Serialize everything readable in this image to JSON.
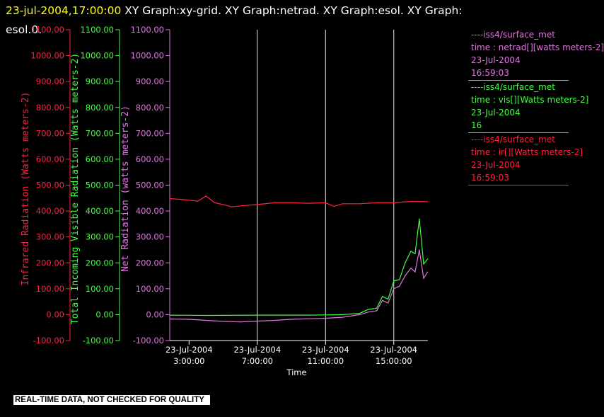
{
  "header": {
    "timestamp": "23-jul-2004,17:00:00",
    "graphs_line": " XY Graph:xy-grid.  XY Graph:netrad.  XY Graph:esol.  XY Graph:",
    "graphs_wrap": "esol.0."
  },
  "notice": "REAL-TIME DATA, NOT CHECKED FOR QUALITY",
  "colors": {
    "ir": "#ff2040",
    "vis": "#40ff40",
    "net": "#dd77dd",
    "axis": "#ffffff",
    "grid": "#ffffff"
  },
  "legend": [
    {
      "color": "#dd77dd",
      "lines": [
        "----iss4/surface_met",
        "time : netrad[][watts meters-2]",
        "23-Jul-2004",
        "16:59:03"
      ]
    },
    {
      "color": "#40ff40",
      "lines": [
        "----iss4/surface_met",
        "time : vis[][Watts meters-2]",
        "23-Jul-2004",
        "16"
      ]
    },
    {
      "color": "#ff2040",
      "lines": [
        "----iss4/surface_met",
        "time : ir[][Watts meters-2]",
        "23-Jul-2004",
        "16:59:03"
      ]
    }
  ],
  "chart_data": {
    "type": "line",
    "xlabel": "Time",
    "xlim": [
      "2004-07-23 01:52",
      "2004-07-23 17:00"
    ],
    "x_ticks": [
      {
        "date": "23-Jul-2004",
        "time": "3:00:00",
        "value": "2004-07-23 03:00"
      },
      {
        "date": "23-Jul-2004",
        "time": "7:00:00",
        "value": "2004-07-23 07:00"
      },
      {
        "date": "23-Jul-2004",
        "time": "11:00:00",
        "value": "2004-07-23 11:00"
      },
      {
        "date": "23-Jul-2004",
        "time": "15:00:00",
        "value": "2004-07-23 15:00"
      }
    ],
    "vertical_gridlines_at": [
      "2004-07-23 07:00",
      "2004-07-23 11:00",
      "2004-07-23 15:00"
    ],
    "y_axes": [
      {
        "id": "ir",
        "label": "Infrared Radiation (Watts meters-2)",
        "ylim": [
          -100,
          1100
        ],
        "ticks": [
          "-100.00",
          "0.00",
          "100.00",
          "200.00",
          "300.00",
          "400.00",
          "500.00",
          "600.00",
          "700.00",
          "800.00",
          "900.00",
          "1000.00",
          "1100.00"
        ]
      },
      {
        "id": "vis",
        "label": "Total Incoming Visible Radiation (Watts meters-2)",
        "ylim": [
          -100,
          1100
        ],
        "ticks": [
          "-100.00",
          "0.00",
          "100.00",
          "200.00",
          "300.00",
          "400.00",
          "500.00",
          "600.00",
          "700.00",
          "800.00",
          "900.00",
          "1000.00",
          "1100.00"
        ]
      },
      {
        "id": "net",
        "label": "Net Radiation (watts meters-2)",
        "ylim": [
          -100,
          1100
        ],
        "ticks": [
          "-100.00",
          "0.00",
          "100.00",
          "200.00",
          "300.00",
          "400.00",
          "500.00",
          "600.00",
          "700.00",
          "800.00",
          "900.00",
          "1000.00",
          "1100.00"
        ]
      }
    ],
    "series": [
      {
        "axis": "ir",
        "x": [
          "2004-07-23 01:52",
          "2004-07-23 02:30",
          "2004-07-23 03:00",
          "2004-07-23 03:30",
          "2004-07-23 04:00",
          "2004-07-23 04:30",
          "2004-07-23 05:00",
          "2004-07-23 05:30",
          "2004-07-23 06:00",
          "2004-07-23 07:00",
          "2004-07-23 08:00",
          "2004-07-23 09:00",
          "2004-07-23 10:00",
          "2004-07-23 11:00",
          "2004-07-23 11:30",
          "2004-07-23 12:00",
          "2004-07-23 13:00",
          "2004-07-23 14:00",
          "2004-07-23 15:00",
          "2004-07-23 16:00",
          "2004-07-23 16:59"
        ],
        "y": [
          448,
          445,
          442,
          438,
          458,
          432,
          425,
          416,
          420,
          425,
          432,
          432,
          430,
          432,
          418,
          428,
          428,
          432,
          432,
          437,
          436
        ]
      },
      {
        "axis": "vis",
        "x": [
          "2004-07-23 01:52",
          "2004-07-23 04:00",
          "2004-07-23 07:00",
          "2004-07-23 10:00",
          "2004-07-23 11:00",
          "2004-07-23 12:00",
          "2004-07-23 13:00",
          "2004-07-23 13:30",
          "2004-07-23 14:00",
          "2004-07-23 14:20",
          "2004-07-23 14:40",
          "2004-07-23 15:00",
          "2004-07-23 15:20",
          "2004-07-23 15:40",
          "2004-07-23 16:00",
          "2004-07-23 16:15",
          "2004-07-23 16:30",
          "2004-07-23 16:45",
          "2004-07-23 16:59"
        ],
        "y": [
          -2,
          -3,
          -2,
          -2,
          -1,
          0,
          5,
          20,
          25,
          70,
          60,
          130,
          135,
          200,
          245,
          235,
          370,
          195,
          215
        ]
      },
      {
        "axis": "net",
        "x": [
          "2004-07-23 01:52",
          "2004-07-23 03:00",
          "2004-07-23 04:00",
          "2004-07-23 05:00",
          "2004-07-23 06:00",
          "2004-07-23 07:00",
          "2004-07-23 08:00",
          "2004-07-23 09:00",
          "2004-07-23 10:00",
          "2004-07-23 11:00",
          "2004-07-23 12:00",
          "2004-07-23 13:00",
          "2004-07-23 13:30",
          "2004-07-23 14:00",
          "2004-07-23 14:20",
          "2004-07-23 14:40",
          "2004-07-23 15:00",
          "2004-07-23 15:20",
          "2004-07-23 15:40",
          "2004-07-23 16:00",
          "2004-07-23 16:15",
          "2004-07-23 16:30",
          "2004-07-23 16:45",
          "2004-07-23 16:59"
        ],
        "y": [
          -17,
          -18,
          -22,
          -26,
          -28,
          -25,
          -22,
          -18,
          -16,
          -14,
          -10,
          0,
          10,
          15,
          55,
          45,
          100,
          110,
          150,
          180,
          165,
          250,
          140,
          165
        ]
      }
    ]
  }
}
